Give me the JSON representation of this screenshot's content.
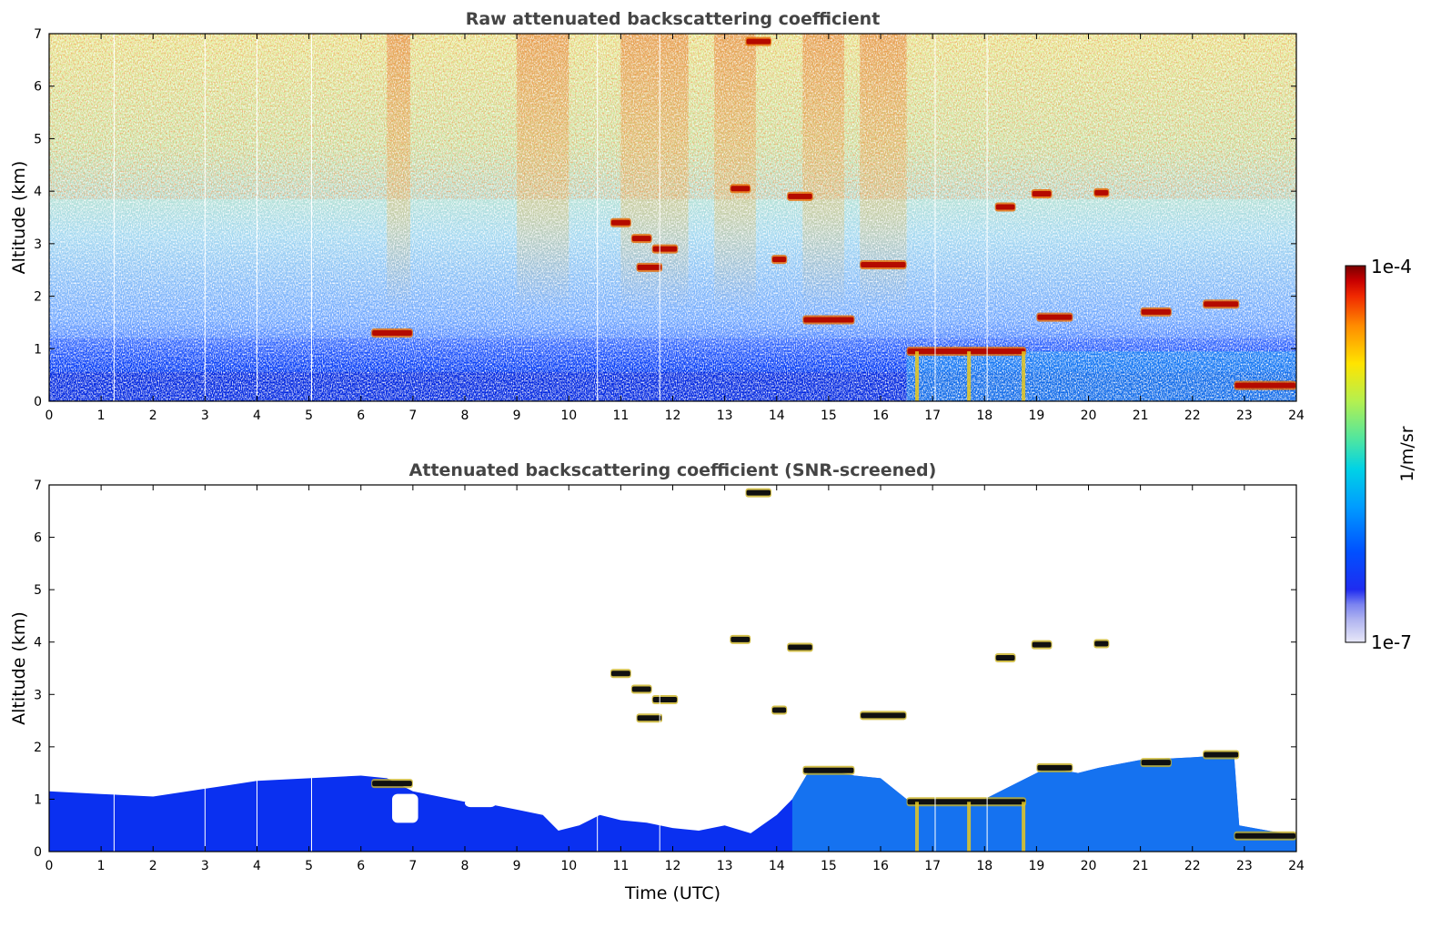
{
  "chart_data": [
    {
      "type": "heatmap",
      "title": "Raw attenuated backscattering coefficient",
      "xlabel": "",
      "ylabel": "Altitude (km)",
      "xlim": [
        0,
        24
      ],
      "ylim": [
        0,
        7
      ],
      "xticks": [
        "0",
        "1",
        "2",
        "3",
        "4",
        "5",
        "6",
        "7",
        "8",
        "9",
        "10",
        "11",
        "12",
        "13",
        "14",
        "15",
        "16",
        "17",
        "18",
        "19",
        "20",
        "21",
        "22",
        "23",
        "24"
      ],
      "yticks": [
        "0",
        "1",
        "2",
        "3",
        "4",
        "5",
        "6",
        "7"
      ],
      "features": [
        {
          "name": "boundary layer",
          "t": [
            0,
            24
          ],
          "z_top": 0.9
        },
        {
          "name": "aerosol layer",
          "t": [
            6.2,
            7.0
          ],
          "z": 1.3
        },
        {
          "name": "cloud",
          "t": [
            10.8,
            11.2
          ],
          "z": 3.4
        },
        {
          "name": "cloud",
          "t": [
            11.2,
            11.6
          ],
          "z": 3.1
        },
        {
          "name": "cloud",
          "t": [
            11.6,
            12.1
          ],
          "z": 2.9
        },
        {
          "name": "cloud",
          "t": [
            11.3,
            11.8
          ],
          "z": 2.55
        },
        {
          "name": "cloud",
          "t": [
            13.1,
            13.5
          ],
          "z": 4.05
        },
        {
          "name": "cloud",
          "t": [
            13.4,
            13.9
          ],
          "z": 6.85
        },
        {
          "name": "cloud",
          "t": [
            14.2,
            14.7
          ],
          "z": 3.9
        },
        {
          "name": "cloud",
          "t": [
            13.9,
            14.2
          ],
          "z": 2.7
        },
        {
          "name": "cloud",
          "t": [
            14.5,
            15.5
          ],
          "z": 1.55
        },
        {
          "name": "cloud",
          "t": [
            15.6,
            16.5
          ],
          "z": 2.6
        },
        {
          "name": "cloud layer",
          "t": [
            16.5,
            18.8
          ],
          "z": 0.95
        },
        {
          "name": "cloud",
          "t": [
            18.2,
            18.6
          ],
          "z": 3.7
        },
        {
          "name": "cloud",
          "t": [
            18.9,
            19.3
          ],
          "z": 3.95
        },
        {
          "name": "cloud",
          "t": [
            19.0,
            19.7
          ],
          "z": 1.6
        },
        {
          "name": "cloud",
          "t": [
            20.1,
            20.4
          ],
          "z": 3.97
        },
        {
          "name": "cloud",
          "t": [
            21.0,
            21.6
          ],
          "z": 1.7
        },
        {
          "name": "cloud",
          "t": [
            22.2,
            22.9
          ],
          "z": 1.85
        },
        {
          "name": "low cloud",
          "t": [
            22.8,
            24
          ],
          "z": 0.3
        }
      ]
    },
    {
      "type": "heatmap",
      "title": "Attenuated backscattering coefficient (SNR-screened)",
      "xlabel": "Time (UTC)",
      "ylabel": "Altitude (km)",
      "xlim": [
        0,
        24
      ],
      "ylim": [
        0,
        7
      ],
      "xticks": [
        "0",
        "1",
        "2",
        "3",
        "4",
        "5",
        "6",
        "7",
        "8",
        "9",
        "10",
        "11",
        "12",
        "13",
        "14",
        "15",
        "16",
        "17",
        "18",
        "19",
        "20",
        "21",
        "22",
        "23",
        "24"
      ],
      "yticks": [
        "0",
        "1",
        "2",
        "3",
        "4",
        "5",
        "6",
        "7"
      ]
    }
  ],
  "colorbar": {
    "label": "1/m/sr",
    "max_label": "1e-4",
    "min_label": "1e-7",
    "colors": [
      "#e8e8f8",
      "#b0b4f0",
      "#7c84f0",
      "#1f2cf0",
      "#0050ff",
      "#009cff",
      "#00d2e6",
      "#50e6a0",
      "#b4f050",
      "#ffe400",
      "#ff8c00",
      "#f02800",
      "#c80000",
      "#780000"
    ]
  }
}
